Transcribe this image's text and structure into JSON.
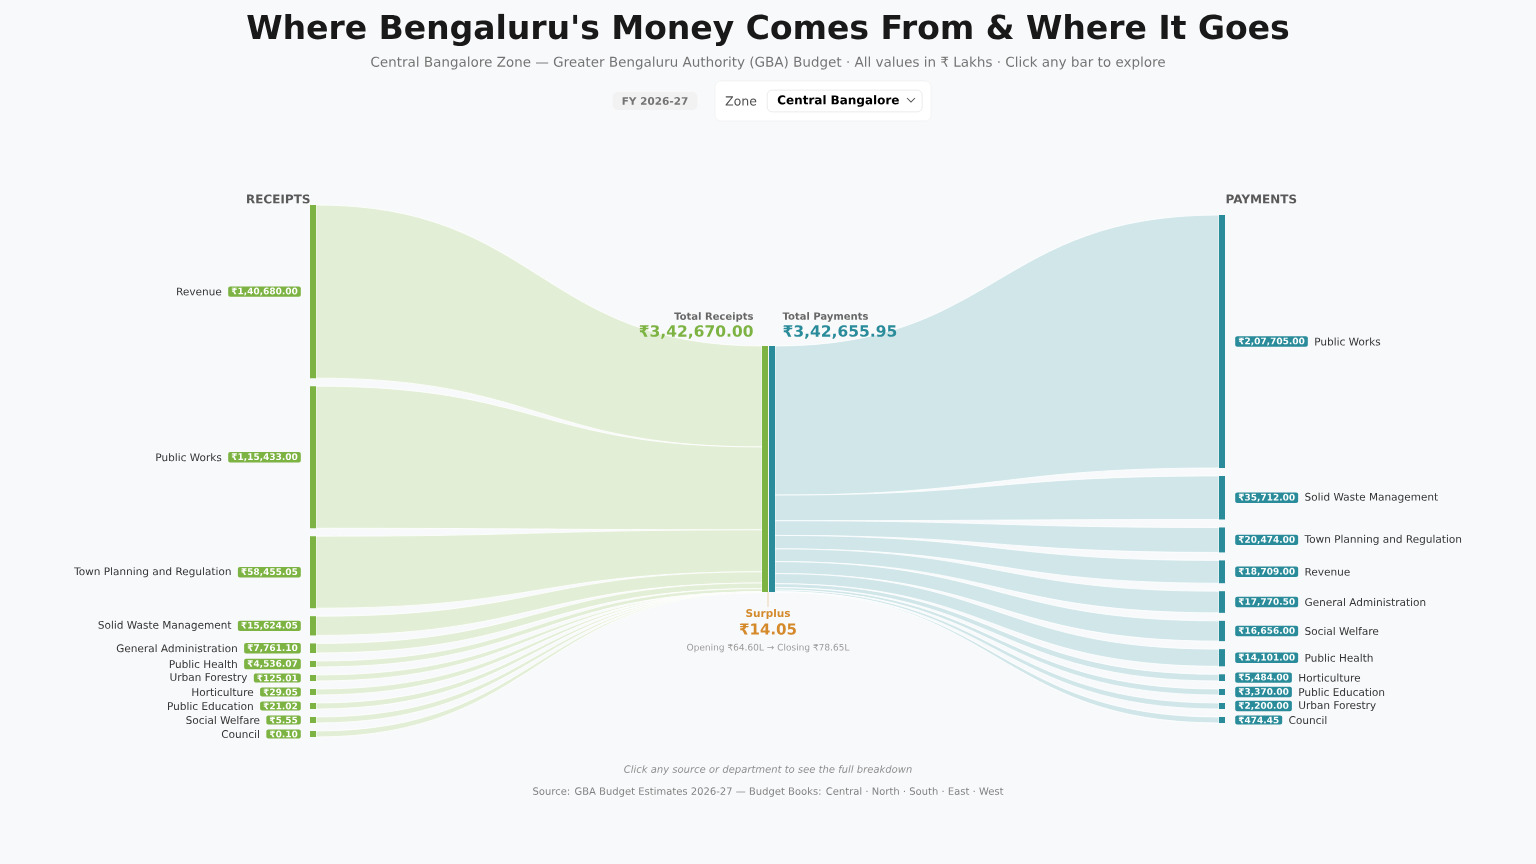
{
  "chart_data": [
    {
      "type": "other",
      "title": "Where Bengaluru's Money Comes From & Where It Goes",
      "subtitle": "Central Bangalore Zone — Greater Bengaluru Authority (GBA) Budget · All values in ₹ Lakhs · Click any bar to explore",
      "categories": [
        "Revenue",
        "Public Works",
        "Town Planning and Regulation",
        "Solid Waste Management",
        "General Administration",
        "Public Health",
        "Urban Forestry",
        "Horticulture",
        "Public Education",
        "Social Welfare",
        "Council"
      ],
      "series": [
        {
          "color": "#7cb342",
          "values": [
            140680.0,
            115433.0,
            58455.05,
            15624.05,
            7761.1,
            4536.07,
            125.01,
            29.05,
            21.02,
            5.55,
            0.1
          ],
          "value_labels": [
            "₹1,40,680.00",
            "₹1,15,433.00",
            "₹58,455.05",
            "₹15,624.05",
            "₹7,761.10",
            "₹4,536.07",
            "₹125.01",
            "₹29.05",
            "₹21.02",
            "₹5.55",
            "₹0.10"
          ]
        }
      ],
      "annotations": [
        "FY 2026-27",
        "Zone",
        "Central Bangalore",
        "RECEIPTS",
        "Total Receipts",
        "₹3,42,670.00",
        "Surplus",
        "₹14.05",
        "Opening ₹64.60L → Closing ₹78.65L",
        "Click any source or department to see the full breakdown",
        "Source: GBA Budget Estimates 2026-27 — Budget Books: Central · North · South · East · West"
      ]
    },
    {
      "type": "other",
      "categories": [
        "Public Works",
        "Solid Waste Management",
        "Town Planning and Regulation",
        "Revenue",
        "General Administration",
        "Social Welfare",
        "Public Health",
        "Horticulture",
        "Public Education",
        "Urban Forestry",
        "Council"
      ],
      "series": [
        {
          "color": "#2a8c9a",
          "values": [
            207705.0,
            35712.0,
            20474.0,
            18709.0,
            17770.5,
            16656.0,
            14101.0,
            5484.0,
            3370.0,
            2200.0,
            474.45
          ],
          "value_labels": [
            "₹2,07,705.00",
            "₹35,712.00",
            "₹20,474.00",
            "₹18,709.00",
            "₹17,770.50",
            "₹16,656.00",
            "₹14,101.00",
            "₹5,484.00",
            "₹3,370.00",
            "₹2,200.00",
            "₹474.45"
          ]
        }
      ],
      "annotations": [
        "PAYMENTS",
        "Total Payments",
        "₹3,42,655.95"
      ]
    }
  ]
}
